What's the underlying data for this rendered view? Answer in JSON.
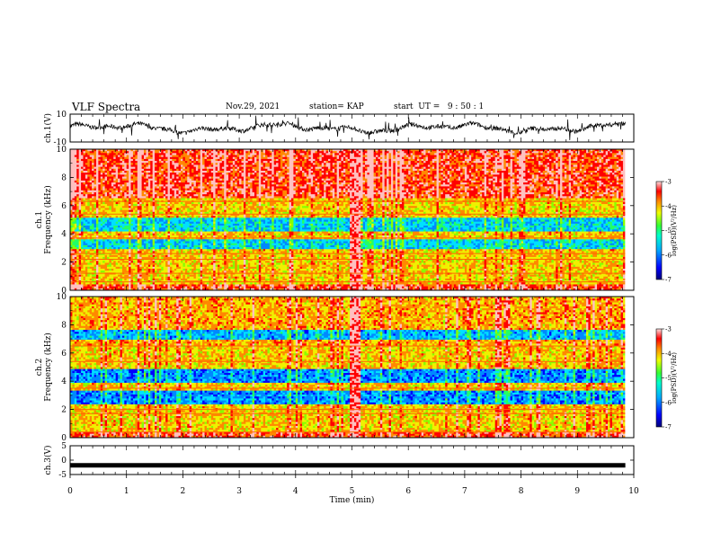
{
  "header": {
    "title": "VLF Spectra",
    "date": "Nov.29, 2021",
    "station": "station= KAP",
    "start": "start  UT =   9 : 50 : 1"
  },
  "colors": {
    "spectrogram_palette": [
      "#00007a",
      "#0000ff",
      "#0088ff",
      "#00e0ff",
      "#22ff66",
      "#88ff00",
      "#f0f000",
      "#ff8800",
      "#ff0000",
      "#ffc0c0"
    ]
  },
  "chart_data": [
    {
      "type": "line",
      "ylabel": "ch.1(V)",
      "ylim": [
        -10,
        10
      ],
      "yticks": [
        "10",
        "-10"
      ],
      "xlim": [
        0,
        10
      ]
    },
    {
      "type": "heatmap",
      "ylabel_top": "ch.1",
      "ylabel": "Frequency (kHz)",
      "xlim": [
        0,
        10
      ],
      "ylim": [
        0,
        10
      ],
      "yticks": [
        "0",
        "2",
        "4",
        "6",
        "8",
        "10"
      ],
      "colorbar": {
        "label": "log(PSD)(V²/Hz)",
        "ticks": [
          "-3",
          "-4",
          "-5",
          "-6",
          "-7"
        ],
        "range": [
          -7,
          -3
        ]
      },
      "quiet_bands_khz": [
        [
          4.2,
          5.2
        ],
        [
          2.9,
          3.6
        ]
      ],
      "impulse_time_min": 5.05
    },
    {
      "type": "heatmap",
      "ylabel_top": "ch.2",
      "ylabel": "Frequency (kHz)",
      "xlim": [
        0,
        10
      ],
      "ylim": [
        0,
        10
      ],
      "yticks": [
        "0",
        "2",
        "4",
        "6",
        "8",
        "10"
      ],
      "colorbar": {
        "label": "log(PSD)(V²/Hz)",
        "ticks": [
          "-3",
          "-4",
          "-5",
          "-6",
          "-7"
        ],
        "range": [
          -7,
          -3
        ]
      },
      "quiet_bands_khz": [
        [
          3.9,
          4.8
        ],
        [
          2.4,
          3.4
        ],
        [
          6.9,
          7.6
        ]
      ],
      "impulse_time_min": 5.05
    },
    {
      "type": "line",
      "ylabel": "ch.3(V)",
      "ylim": [
        -5,
        5
      ],
      "yticks": [
        "5",
        "0",
        "-5"
      ],
      "xlim": [
        0,
        10
      ],
      "xlabel": "Time (min)",
      "xticks": [
        "0",
        "1",
        "2",
        "3",
        "4",
        "5",
        "6",
        "7",
        "8",
        "9",
        "10"
      ],
      "level_v": -1.8
    }
  ]
}
